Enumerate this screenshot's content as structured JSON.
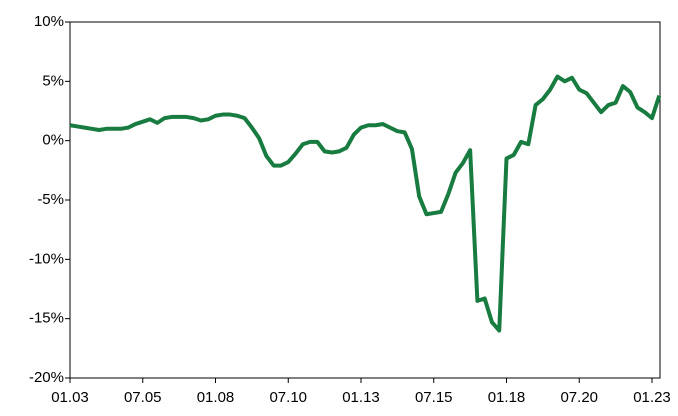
{
  "chart_data": {
    "type": "line",
    "categories": [
      "01.03",
      null,
      null,
      null,
      null,
      null,
      null,
      null,
      null,
      null,
      "07.05",
      null,
      null,
      null,
      null,
      null,
      null,
      null,
      null,
      null,
      "01.08",
      null,
      null,
      null,
      null,
      null,
      null,
      null,
      null,
      null,
      "07.10",
      null,
      null,
      null,
      null,
      null,
      null,
      null,
      null,
      null,
      "01.13",
      null,
      null,
      null,
      null,
      null,
      null,
      null,
      null,
      null,
      "07.15",
      null,
      null,
      null,
      null,
      null,
      null,
      null,
      null,
      null,
      "01.18",
      null,
      null,
      null,
      null,
      null,
      null,
      null,
      null,
      null,
      "07.20",
      null,
      null,
      null,
      null,
      null,
      null,
      null,
      null,
      null,
      "01.23",
      null
    ],
    "values": [
      1.3,
      1.2,
      1.1,
      1.0,
      0.9,
      1.0,
      1.0,
      1.0,
      1.1,
      1.4,
      1.6,
      1.8,
      1.5,
      1.9,
      2.0,
      2.0,
      2.0,
      1.9,
      1.7,
      1.8,
      2.1,
      2.2,
      2.2,
      2.1,
      1.9,
      1.1,
      0.2,
      -1.3,
      -2.1,
      -2.1,
      -1.8,
      -1.1,
      -0.3,
      -0.1,
      -0.1,
      -0.9,
      -1.0,
      -0.9,
      -0.6,
      0.5,
      1.1,
      1.3,
      1.3,
      1.4,
      1.1,
      0.8,
      0.7,
      -0.7,
      -4.7,
      -6.2,
      -6.1,
      -6.0,
      -4.5,
      -2.7,
      -1.9,
      -0.8,
      -13.5,
      -13.3,
      -15.3,
      -16.0,
      -1.5,
      -1.2,
      -0.1,
      -0.3,
      3.0,
      3.5,
      4.3,
      5.4,
      5.0,
      5.3,
      4.3,
      4.0,
      3.2,
      2.4,
      3.0,
      3.2,
      4.6,
      4.1,
      2.8,
      2.4,
      1.9,
      3.8
    ],
    "color": "#187b3f",
    "ylim": [
      -20,
      10
    ],
    "yticks": [
      {
        "value": -20,
        "label": "-20%"
      },
      {
        "value": -15,
        "label": "-15%"
      },
      {
        "value": -10,
        "label": "-10%"
      },
      {
        "value": -5,
        "label": "-5%"
      },
      {
        "value": 0,
        "label": "0%"
      },
      {
        "value": 5,
        "label": "5%"
      },
      {
        "value": 10,
        "label": "10%"
      }
    ],
    "grid": false
  }
}
